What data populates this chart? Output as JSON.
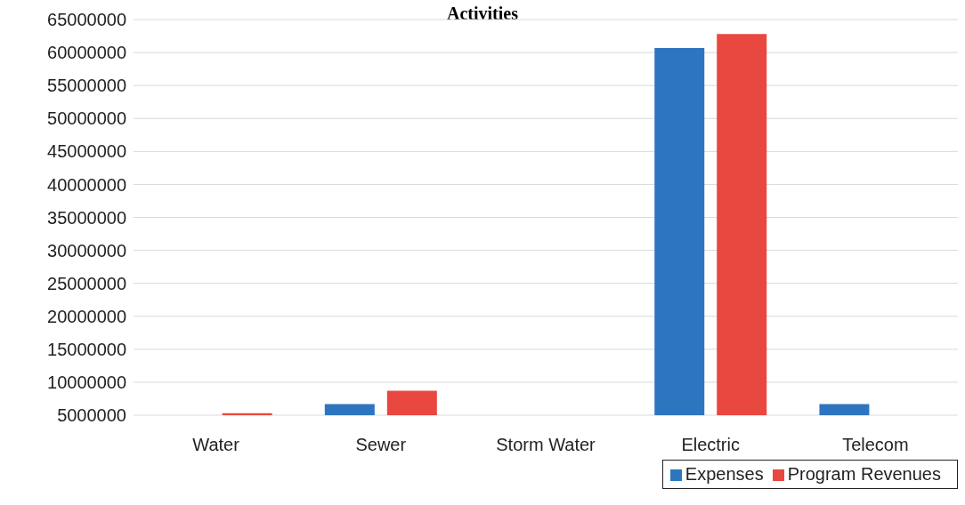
{
  "chart_data": {
    "type": "bar",
    "title": "Activities",
    "categories": [
      "Water",
      "Sewer",
      "Storm Water",
      "Electric",
      "Telecom"
    ],
    "series": [
      {
        "name": "Expenses",
        "color": "#2e75c0",
        "values": [
          null,
          6700000,
          null,
          60700000,
          6700000
        ]
      },
      {
        "name": "Program Revenues",
        "color": "#e8483f",
        "values": [
          5300000,
          8700000,
          null,
          62800000,
          null
        ]
      }
    ],
    "ylim": [
      5000000,
      65000000
    ],
    "yticks": [
      5000000,
      10000000,
      15000000,
      20000000,
      25000000,
      30000000,
      35000000,
      40000000,
      45000000,
      50000000,
      55000000,
      60000000,
      65000000
    ],
    "grid": "y",
    "legend": "bottom right"
  }
}
